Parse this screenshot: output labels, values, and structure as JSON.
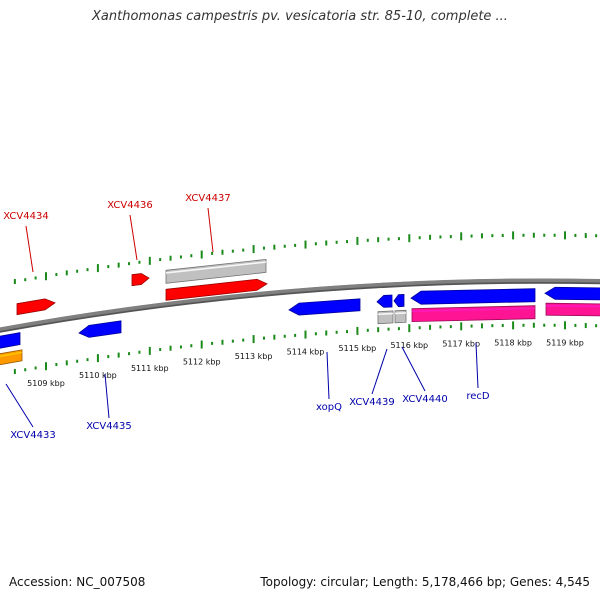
{
  "title": "Xanthomonas campestris pv. vesicatoria str. 85-10, complete ...",
  "footer": {
    "accession": "Accession: NC_007508",
    "summary": "Topology: circular; Length: 5,178,466 bp; Genes: 4,545"
  },
  "colors": {
    "backbone": "#808080",
    "tick": "#1a8a1a",
    "forward_gene": "#ff0000",
    "reverse_gene": "#0000ff",
    "pseudo_gene": "#c0c0c0",
    "highlight_gene": "#ff1493",
    "other_gene": "#ff9900",
    "forward_label": "#cc0000",
    "reverse_label": "#0000aa"
  },
  "scale": {
    "unit": "kbp",
    "tick_labels": [
      {
        "kbp": 5109,
        "text": "5109 kbp"
      },
      {
        "kbp": 5110,
        "text": "5110 kbp"
      },
      {
        "kbp": 5111,
        "text": "5111 kbp"
      },
      {
        "kbp": 5112,
        "text": "5112 kbp"
      },
      {
        "kbp": 5113,
        "text": "5113 kbp"
      },
      {
        "kbp": 5114,
        "text": "5114 kbp"
      },
      {
        "kbp": 5115,
        "text": "5115 kbp"
      },
      {
        "kbp": 5116,
        "text": "5116 kbp"
      },
      {
        "kbp": 5117,
        "text": "5117 kbp"
      },
      {
        "kbp": 5118,
        "text": "5118 kbp"
      },
      {
        "kbp": 5119,
        "text": "5119 kbp"
      }
    ]
  },
  "gene_labels": [
    {
      "text": "XCV4434",
      "strand": "forward"
    },
    {
      "text": "XCV4436",
      "strand": "forward"
    },
    {
      "text": "XCV4437",
      "strand": "forward"
    },
    {
      "text": "XCV4433",
      "strand": "reverse"
    },
    {
      "text": "XCV4435",
      "strand": "reverse"
    },
    {
      "text": "xopQ",
      "strand": "reverse"
    },
    {
      "text": "XCV4439",
      "strand": "reverse"
    },
    {
      "text": "XCV4440",
      "strand": "reverse"
    },
    {
      "text": "recD",
      "strand": "reverse"
    }
  ]
}
